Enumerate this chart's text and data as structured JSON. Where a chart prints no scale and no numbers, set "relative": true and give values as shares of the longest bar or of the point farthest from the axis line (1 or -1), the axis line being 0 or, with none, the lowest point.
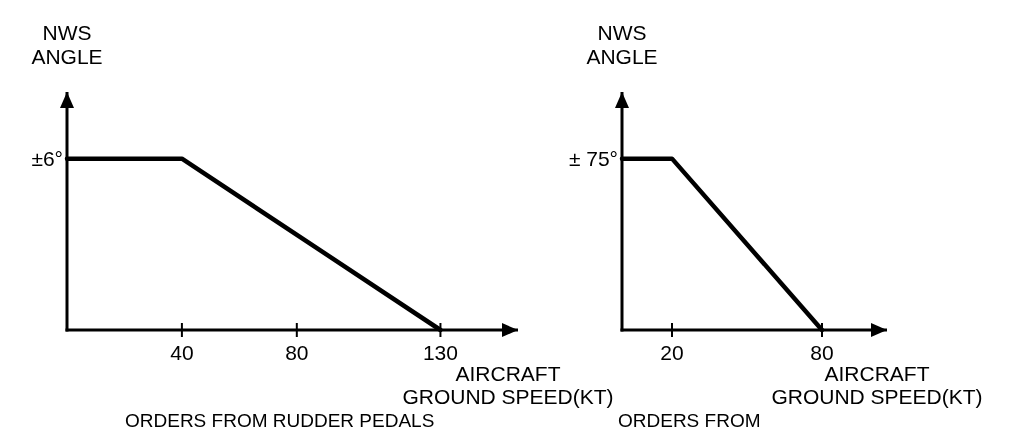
{
  "chart_data": [
    {
      "type": "line",
      "relative": true,
      "ylabel": "NWS\nANGLE",
      "xlabel": "AIRCRAFT\nGROUND SPEED(KT)",
      "x": [
        0,
        40,
        130
      ],
      "values": [
        1,
        1,
        0
      ],
      "color": "#000000",
      "xlim": [
        0,
        157
      ],
      "xticks": [
        40,
        80,
        130
      ],
      "annotations": [
        {
          "text": "±6°",
          "x": 0,
          "y": 1
        },
        "ORDERS FROM RUDDER PEDALS"
      ]
    },
    {
      "type": "line",
      "relative": true,
      "ylabel": "NWS\nANGLE",
      "xlabel": "AIRCRAFT\nGROUND SPEED(KT)",
      "x": [
        0,
        20,
        80
      ],
      "values": [
        1,
        1,
        0
      ],
      "color": "#000000",
      "xlim": [
        0,
        106
      ],
      "xticks": [
        20,
        80
      ],
      "annotations": [
        {
          "text": "± 75°",
          "x": 0,
          "y": 1
        },
        "ORDERS FROM"
      ]
    }
  ]
}
